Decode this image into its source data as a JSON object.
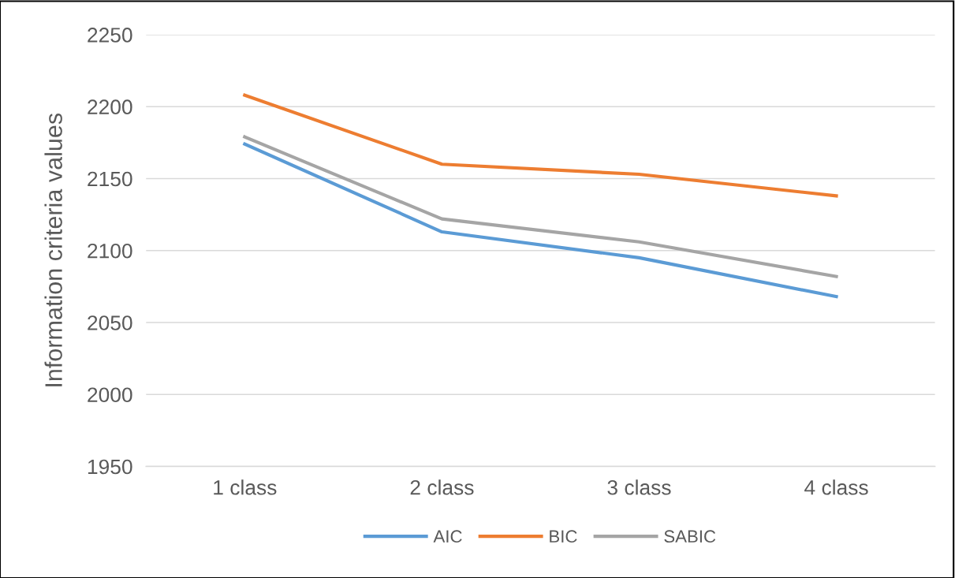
{
  "chart_data": {
    "type": "line",
    "ylabel": "Information criteria values",
    "categories": [
      "1 class",
      "2 class",
      "3 class",
      "4 class"
    ],
    "series": [
      {
        "name": "AIC",
        "color": "#5b9bd5",
        "values": [
          2174,
          2113,
          2095,
          2068
        ]
      },
      {
        "name": "BIC",
        "color": "#ed7d31",
        "values": [
          2208,
          2160,
          2153,
          2138
        ]
      },
      {
        "name": "SABIC",
        "color": "#a5a5a5",
        "values": [
          2179,
          2122,
          2106,
          2082
        ]
      }
    ],
    "ylim": [
      1950,
      2250
    ],
    "yticks": [
      1950,
      2000,
      2050,
      2100,
      2150,
      2200,
      2250
    ],
    "grid": "y",
    "legend": "bottom",
    "marker": "none",
    "line_style": "solid"
  }
}
